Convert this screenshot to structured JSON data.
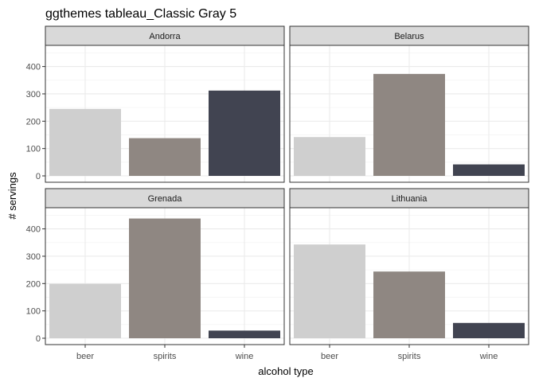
{
  "chart_data": {
    "type": "bar",
    "title": "ggthemes tableau_Classic Gray 5",
    "xlabel": "alcohol type",
    "ylabel": "# servings",
    "categories": [
      "beer",
      "spirits",
      "wine"
    ],
    "ylim": [
      0,
      460
    ],
    "yticks": [
      0,
      100,
      200,
      300,
      400
    ],
    "grid": true,
    "colors": {
      "beer": "#cfcfcf",
      "spirits": "#8f8782",
      "wine": "#414451"
    },
    "facets": [
      {
        "name": "Andorra",
        "values": [
          245,
          138,
          312
        ]
      },
      {
        "name": "Belarus",
        "values": [
          142,
          373,
          42
        ]
      },
      {
        "name": "Grenada",
        "values": [
          199,
          438,
          28
        ]
      },
      {
        "name": "Lithuania",
        "values": [
          343,
          244,
          56
        ]
      }
    ]
  }
}
